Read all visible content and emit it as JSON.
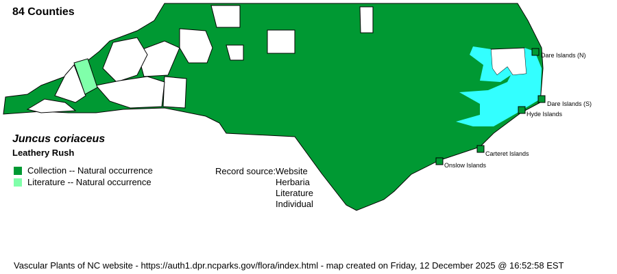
{
  "header": {
    "county_count": "84 Counties"
  },
  "species": {
    "scientific_name": "Juncus coriaceus",
    "common_name": "Leathery Rush"
  },
  "legend": [
    {
      "label": "Collection -- Natural occurrence",
      "color": "#009933"
    },
    {
      "label": "Literature -- Natural occurrence",
      "color": "#80ffaa"
    }
  ],
  "record_source": {
    "label": "Record source:",
    "sources": [
      "Website",
      "Herbaria",
      "Literature",
      "Individual"
    ]
  },
  "islands": [
    {
      "label": "Dare Islands (N)"
    },
    {
      "label": "Dare Islands (S)"
    },
    {
      "label": "Hyde Islands"
    },
    {
      "label": "Carteret Islands"
    },
    {
      "label": "Onslow Islands"
    }
  ],
  "colors": {
    "collection": "#009933",
    "literature": "#80ffaa",
    "water": "#33ffff",
    "absent": "#ffffff"
  },
  "footer": "Vascular Plants of NC website - https://auth1.dpr.ncparks.gov/flora/index.html - map created on Friday, 12 December 2025 @ 16:52:58 EST"
}
